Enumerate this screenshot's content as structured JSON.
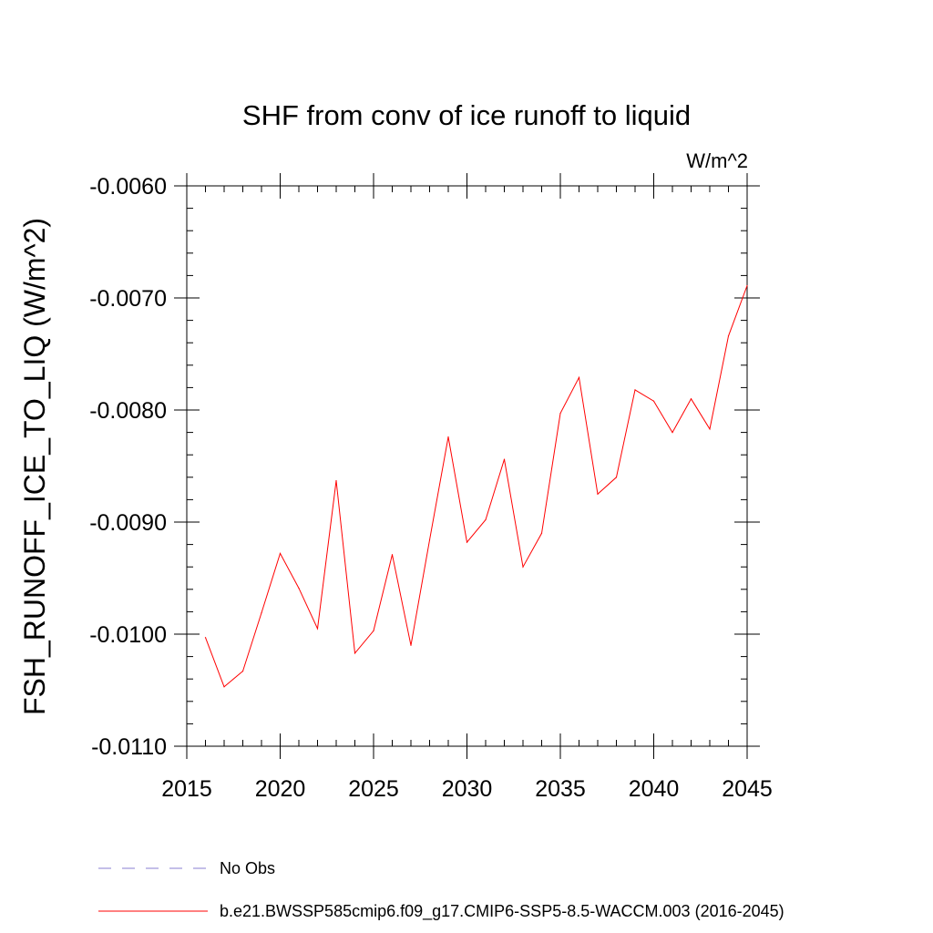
{
  "chart_data": {
    "type": "line",
    "title": "SHF from conv of ice runoff to liquid",
    "units_label": "W/m^2",
    "xlabel": "",
    "ylabel": "FSH_RUNOFF_ICE_TO_LIQ  (W/m^2)",
    "xlim": [
      2015,
      2045
    ],
    "ylim": [
      -0.011,
      -0.006
    ],
    "x_ticks": [
      2015,
      2020,
      2025,
      2030,
      2035,
      2040,
      2045
    ],
    "x_tick_labels": [
      "2015",
      "2020",
      "2025",
      "2030",
      "2035",
      "2040",
      "2045"
    ],
    "y_ticks": [
      -0.011,
      -0.01,
      -0.009,
      -0.008,
      -0.007,
      -0.006
    ],
    "y_tick_labels": [
      "-0.0110",
      "-0.0100",
      "-0.0090",
      "-0.0080",
      "-0.0070",
      "-0.0060"
    ],
    "series": [
      {
        "name": "b.e21.BWSSP585cmip6.f09_g17.CMIP6-SSP5-8.5-WACCM.003 (2016-2045)",
        "color": "#ff0000",
        "style": "solid",
        "x": [
          2016,
          2017,
          2018,
          2019,
          2020,
          2021,
          2022,
          2023,
          2024,
          2025,
          2026,
          2027,
          2028,
          2029,
          2030,
          2031,
          2032,
          2033,
          2034,
          2035,
          2036,
          2037,
          2038,
          2039,
          2040,
          2041,
          2042,
          2043,
          2044,
          2045
        ],
        "y": [
          -0.01003,
          -0.01047,
          -0.01033,
          -0.00981,
          -0.00928,
          -0.00959,
          -0.00995,
          -0.00863,
          -0.01017,
          -0.00997,
          -0.00929,
          -0.0101,
          -0.00916,
          -0.00824,
          -0.00918,
          -0.00898,
          -0.00844,
          -0.0094,
          -0.0091,
          -0.00803,
          -0.00771,
          -0.00875,
          -0.0086,
          -0.00782,
          -0.00792,
          -0.0082,
          -0.0079,
          -0.00817,
          -0.00734,
          -0.00689
        ]
      }
    ],
    "legend": [
      {
        "label": "No Obs",
        "color": "#8a7fd0",
        "style": "dashed"
      },
      {
        "label": "b.e21.BWSSP585cmip6.f09_g17.CMIP6-SSP5-8.5-WACCM.003 (2016-2045)",
        "color": "#ff0000",
        "style": "solid"
      }
    ]
  }
}
